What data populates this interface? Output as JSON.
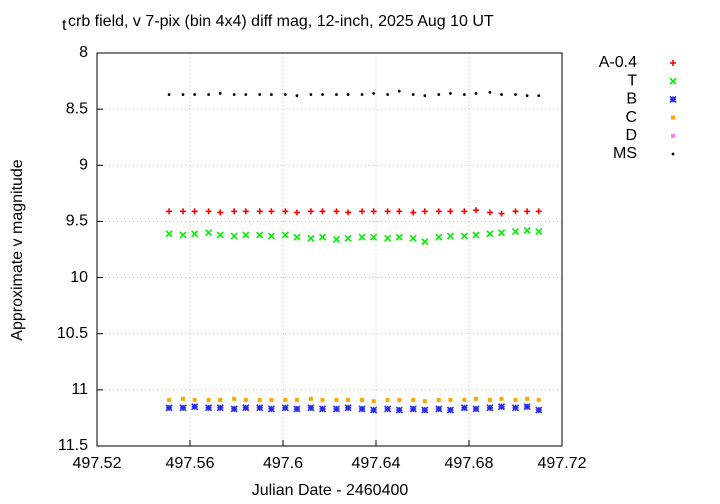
{
  "chart_data": {
    "type": "scatter",
    "title_subscript": "t",
    "title": "crb field, v 7-pix (bin 4x4) diff mag, 12-inch, 2025 Aug 10 UT",
    "x_label": "Julian Date - 2460400",
    "y_label": "Approximate v magnitude",
    "xlim": [
      497.52,
      497.72
    ],
    "xticks": [
      497.52,
      497.56,
      497.6,
      497.64,
      497.68,
      497.72
    ],
    "ylim": [
      8,
      11.5
    ],
    "yticks": [
      8,
      8.5,
      9,
      9.5,
      10,
      10.5,
      11,
      11.5
    ],
    "y_reversed": true,
    "grid": true,
    "legend": "right",
    "x": [
      497.551,
      497.557,
      497.562,
      497.568,
      497.573,
      497.579,
      497.584,
      497.59,
      497.595,
      497.601,
      497.606,
      497.612,
      497.617,
      497.623,
      497.628,
      497.634,
      497.639,
      497.645,
      497.65,
      497.656,
      497.661,
      497.667,
      497.672,
      497.678,
      497.683,
      497.689,
      497.694,
      497.7,
      497.705,
      497.71
    ],
    "series": [
      {
        "name": "A-0.4",
        "color": "#ff0000",
        "marker": "plus",
        "values": [
          9.41,
          9.41,
          9.41,
          9.41,
          9.42,
          9.41,
          9.41,
          9.41,
          9.41,
          9.41,
          9.42,
          9.41,
          9.41,
          9.41,
          9.42,
          9.41,
          9.41,
          9.41,
          9.41,
          9.42,
          9.41,
          9.41,
          9.41,
          9.41,
          9.4,
          9.42,
          9.43,
          9.41,
          9.41,
          9.41
        ]
      },
      {
        "name": "T",
        "color": "#00ee00",
        "marker": "cross",
        "values": [
          9.61,
          9.62,
          9.61,
          9.6,
          9.62,
          9.63,
          9.62,
          9.62,
          9.63,
          9.62,
          9.64,
          9.65,
          9.64,
          9.66,
          9.65,
          9.64,
          9.64,
          9.65,
          9.64,
          9.65,
          9.68,
          9.64,
          9.63,
          9.63,
          9.62,
          9.61,
          9.6,
          9.59,
          9.58,
          9.59
        ]
      },
      {
        "name": "B",
        "color": "#2a2aee",
        "marker": "star",
        "values": [
          11.16,
          11.16,
          11.15,
          11.16,
          11.16,
          11.17,
          11.16,
          11.16,
          11.17,
          11.16,
          11.17,
          11.16,
          11.17,
          11.17,
          11.16,
          11.17,
          11.18,
          11.17,
          11.18,
          11.17,
          11.18,
          11.17,
          11.18,
          11.16,
          11.17,
          11.16,
          11.15,
          11.16,
          11.15,
          11.18
        ]
      },
      {
        "name": "C",
        "color": "#ffa500",
        "marker": "square",
        "values": [
          11.09,
          11.08,
          11.09,
          11.09,
          11.09,
          11.08,
          11.09,
          11.09,
          11.09,
          11.09,
          11.09,
          11.08,
          11.09,
          11.09,
          11.09,
          11.09,
          11.1,
          11.09,
          11.09,
          11.09,
          11.1,
          11.09,
          11.09,
          11.09,
          11.08,
          11.09,
          11.08,
          11.09,
          11.08,
          11.09
        ]
      },
      {
        "name": "D",
        "color": "#ee82ee",
        "marker": "square",
        "values": [
          null,
          null,
          null,
          null,
          null,
          null,
          null,
          null,
          null,
          null,
          null,
          null,
          null,
          null,
          null,
          null,
          null,
          null,
          null,
          null,
          null,
          null,
          null,
          null,
          null,
          null,
          null,
          null,
          null,
          null
        ]
      },
      {
        "name": "MS",
        "color": "#000000",
        "marker": "dot",
        "values": [
          8.37,
          8.37,
          8.37,
          8.37,
          8.36,
          8.37,
          8.37,
          8.37,
          8.37,
          8.37,
          8.38,
          8.37,
          8.37,
          8.37,
          8.37,
          8.37,
          8.36,
          8.37,
          8.34,
          8.37,
          8.38,
          8.37,
          8.36,
          8.37,
          8.36,
          8.35,
          8.37,
          8.37,
          8.38,
          8.38
        ]
      }
    ]
  }
}
